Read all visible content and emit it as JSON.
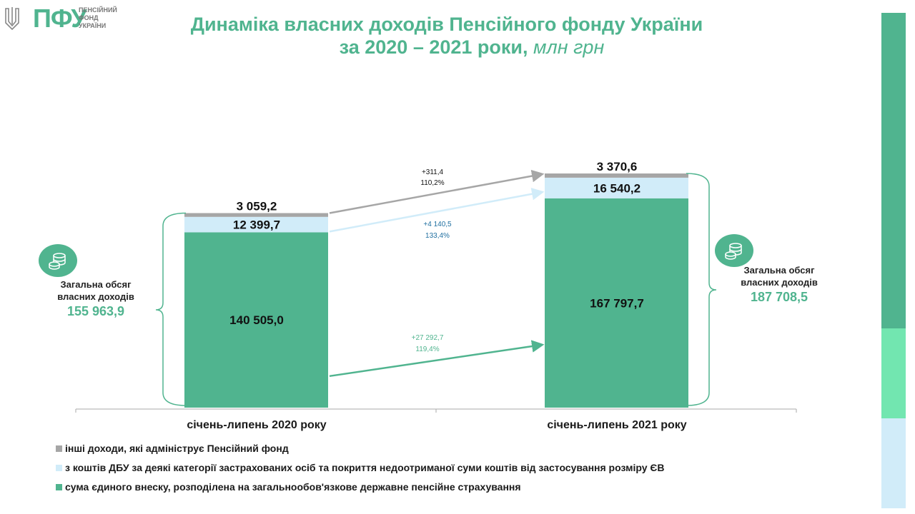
{
  "logo": {
    "abbr": "ПФУ",
    "subtitle": "ПЕНСІЙНИЙ\nФОНД\nУКРАЇНИ"
  },
  "title": {
    "line1": "Динаміка власних доходів Пенсійного фонду України",
    "line2": "за 2020 – 2021 роки,",
    "unit": " млн грн"
  },
  "colors": {
    "green": "#50b48f",
    "light_blue": "#d1ecf9",
    "gray": "#a6a6a6",
    "side_green_light": "#72e6b0"
  },
  "chart_data": {
    "type": "bar",
    "stacked": true,
    "categories": [
      "січень-липень 2020 року",
      "січень-липень 2021 року"
    ],
    "series": [
      {
        "name": "сума єдиного внеску, розподілена на загальнообов'язкове державне пенсійне страхування",
        "values": [
          140505.0,
          167797.7
        ],
        "labels": [
          "140 505,0",
          "167 797,7"
        ],
        "color": "#50b48f"
      },
      {
        "name": "з коштів ДБУ за деякі категорії застрахованих  осіб та покриття недоотриманої суми коштів від застосування розміру ЄВ",
        "values": [
          12399.7,
          16540.2
        ],
        "labels": [
          "12 399,7",
          "16 540,2"
        ],
        "color": "#d1ecf9"
      },
      {
        "name": "інші доходи, які адмініструє Пенсійний фонд",
        "values": [
          3059.2,
          3370.6
        ],
        "labels": [
          "3 059,2",
          "3 370,6"
        ],
        "color": "#a6a6a6"
      }
    ],
    "growth": [
      {
        "series": "інші доходи, які адмініструє Пенсійний фонд",
        "delta": "+311,4",
        "pct": "110,2%"
      },
      {
        "series": "з коштів ДБУ за деякі категорії застрахованих  осіб та покриття недоотриманої суми коштів від застосування розміру ЄВ",
        "delta": "+4 140,5",
        "pct": "133,4%"
      },
      {
        "series": "сума єдиного внеску, розподілена на загальнообов'язкове державне пенсійне страхування",
        "delta": "+27 292,7",
        "pct": "119,4%"
      }
    ],
    "totals": [
      {
        "label": "Загальна обсяг\nвласних доходів",
        "value": "155 963,9"
      },
      {
        "label": "Загальна обсяг\nвласних доходів",
        "value": "187 708,5"
      }
    ],
    "legend_position": "bottom-left",
    "grid": false
  }
}
